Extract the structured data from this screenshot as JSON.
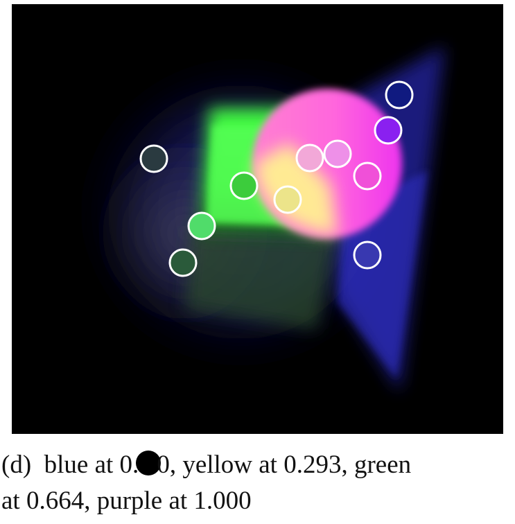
{
  "caption": {
    "label": "(d)",
    "line1_part1": "blue at 0.",
    "line1_part2": "0, yellow at 0.293, green",
    "line2": "at 0.664, purple at 1.000"
  },
  "colors": {
    "background": "#000000",
    "blue_glow": "#3a3acc",
    "green_patch": "#3cff3c",
    "magenta_disc": "#ff55dd",
    "yellow_blend": "#ffff80",
    "marker_stroke": "#ffffff"
  },
  "markers": [
    {
      "id": "m1",
      "fill": "#2a3a40"
    },
    {
      "id": "m2",
      "fill": "#3ccc3c"
    },
    {
      "id": "m3",
      "fill": "#50dc6a"
    },
    {
      "id": "m4",
      "fill": "#2a5a3a"
    },
    {
      "id": "m5",
      "fill": "#ece48a"
    },
    {
      "id": "m6",
      "fill": "#f2a8d8"
    },
    {
      "id": "m7",
      "fill": "#ee90e8"
    },
    {
      "id": "m8",
      "fill": "#f050d8"
    },
    {
      "id": "m9",
      "fill": "#8a20f0"
    },
    {
      "id": "m10",
      "fill": "#101a80"
    },
    {
      "id": "m11",
      "fill": "#3838b0"
    }
  ]
}
